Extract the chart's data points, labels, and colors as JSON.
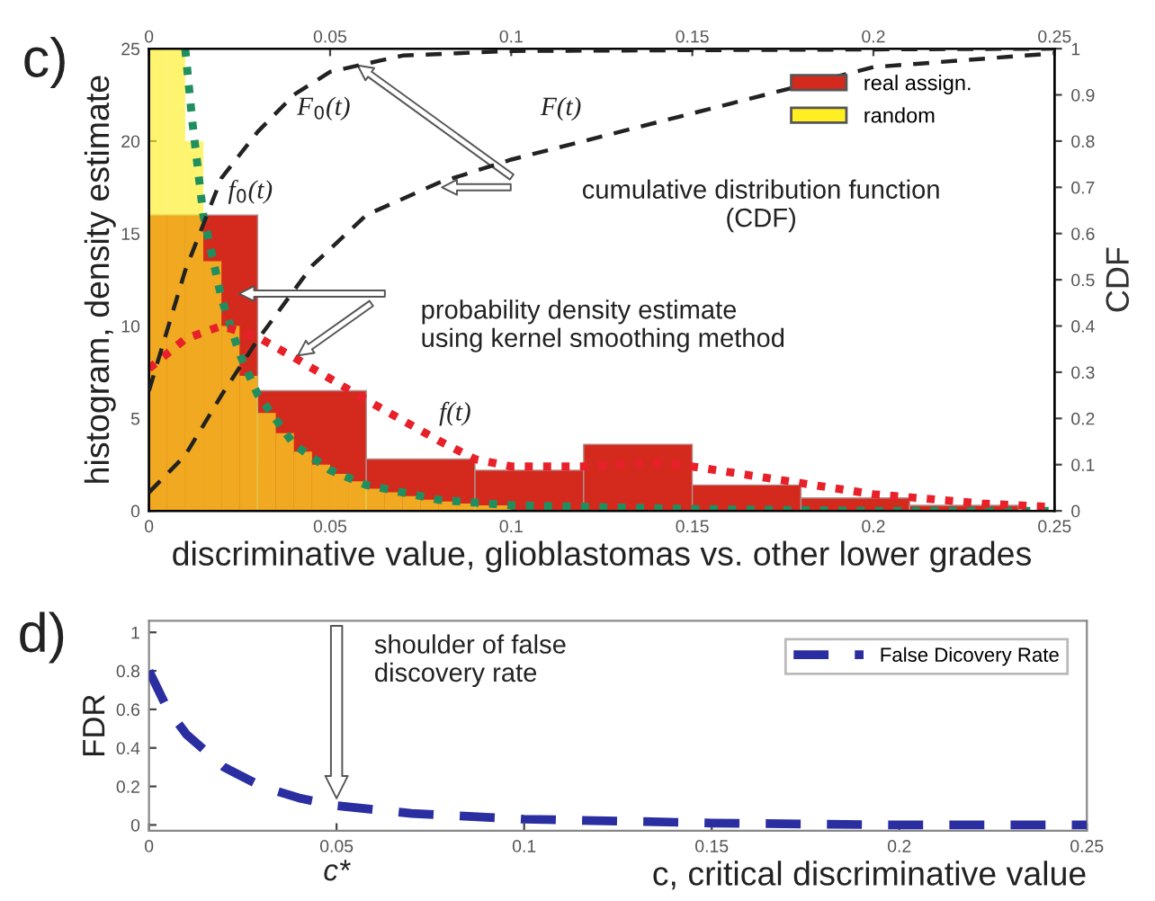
{
  "chart_data": [
    {
      "type": "histogram",
      "xlabel": "discriminative value, glioblastomas vs. other lower grades",
      "ylabel": "histogram, density estimate",
      "y2label": "CDF",
      "xlim": [
        0,
        0.25
      ],
      "xticks": [
        0,
        0.05,
        0.1,
        0.15,
        0.2,
        0.25
      ],
      "x2lim": [
        0,
        0.25
      ],
      "x2ticks": [
        0,
        0.05,
        0.1,
        0.15,
        0.2,
        0.25
      ],
      "ylim": [
        0,
        25
      ],
      "yticks": [
        0,
        5,
        10,
        15,
        20,
        25
      ],
      "y2lim": [
        0,
        1
      ],
      "y2ticks": [
        0,
        0.1,
        0.2,
        0.3,
        0.4,
        0.5,
        0.6,
        0.7,
        0.8,
        0.9,
        1
      ],
      "grid": false,
      "legend": "top right",
      "series": [
        {
          "name": "real assign.",
          "color": "#d42a1e",
          "bins": [
            0,
            0.03,
            0.06,
            0.09,
            0.12,
            0.15,
            0.18,
            0.21,
            0.24
          ],
          "values": [
            16,
            6.5,
            2.8,
            2.2,
            3.6,
            1.4,
            0.7,
            0.3
          ]
        },
        {
          "name": "random",
          "color": "#ffee22",
          "bins": [
            0,
            0.005,
            0.01,
            0.015,
            0.02,
            0.025,
            0.03,
            0.035,
            0.04,
            0.045,
            0.05,
            0.055,
            0.06,
            0.065,
            0.07,
            0.075,
            0.08,
            0.085,
            0.09,
            0.095,
            0.1
          ],
          "values": [
            25,
            25,
            20,
            13.5,
            10,
            7.3,
            5.3,
            4.2,
            3.2,
            2.5,
            2.0,
            1.6,
            1.2,
            1.0,
            0.8,
            0.6,
            0.5,
            0.4,
            0.3,
            0.3
          ]
        },
        {
          "type": "line",
          "color": "#1f8f5f",
          "line_style": "dotted",
          "x": [
            0.01,
            0.012,
            0.015,
            0.02,
            0.025,
            0.03,
            0.04,
            0.05,
            0.06,
            0.08,
            0.1,
            0.15,
            0.2,
            0.25
          ],
          "values": [
            25,
            21,
            16,
            11.5,
            8.5,
            6.3,
            3.6,
            2.2,
            1.4,
            0.6,
            0.3,
            0.1,
            0,
            0
          ]
        },
        {
          "type": "line",
          "color": "#e8202a",
          "line_style": "dotted",
          "x": [
            0,
            0.01,
            0.02,
            0.03,
            0.04,
            0.06,
            0.08,
            0.09,
            0.1,
            0.12,
            0.14,
            0.15,
            0.17,
            0.2,
            0.23,
            0.25
          ],
          "values": [
            7.7,
            9.3,
            10,
            9.4,
            8.3,
            6,
            3.8,
            2.8,
            2.4,
            2.4,
            2.6,
            2.4,
            1.8,
            0.9,
            0.4,
            0.2
          ]
        },
        {
          "type": "line",
          "axis": "y2",
          "color": "#222222",
          "line_style": "dashed",
          "x": [
            0,
            0.01,
            0.02,
            0.03,
            0.04,
            0.05,
            0.07,
            0.1,
            0.25
          ],
          "values": [
            0.26,
            0.52,
            0.72,
            0.82,
            0.9,
            0.95,
            0.985,
            0.995,
            1
          ]
        },
        {
          "type": "line",
          "axis": "y2",
          "color": "#222222",
          "line_style": "dashed",
          "x": [
            0,
            0.01,
            0.02,
            0.03,
            0.045,
            0.06,
            0.08,
            0.1,
            0.13,
            0.16,
            0.2,
            0.25
          ],
          "values": [
            0.04,
            0.12,
            0.25,
            0.37,
            0.53,
            0.64,
            0.71,
            0.76,
            0.82,
            0.88,
            0.96,
            0.99
          ]
        }
      ],
      "annotations": [
        "c)",
        "F$_{0}$(t)",
        "F(t)",
        "f$_{0}$(t)",
        "f(t)",
        "cumulative distribution function\n(CDF)",
        "probability density estimate\nusing kernel smoothing method"
      ]
    },
    {
      "type": "line",
      "xlabel": "c, critical discriminative value",
      "ylabel": "FDR",
      "xlim": [
        0,
        0.25
      ],
      "xticks": [
        0,
        0.05,
        0.1,
        0.15,
        0.2,
        0.25
      ],
      "ylim": [
        -0.03,
        1.06
      ],
      "yticks": [
        0,
        0.2,
        0.4,
        0.6,
        0.8,
        1
      ],
      "grid": false,
      "legend": "top right",
      "line_style": "dashed",
      "marker": "none",
      "series": [
        {
          "name": "False Dicovery Rate",
          "color": "#2a2ea0",
          "x": [
            0,
            0.005,
            0.01,
            0.02,
            0.03,
            0.04,
            0.05,
            0.07,
            0.1,
            0.15,
            0.2,
            0.25
          ],
          "values": [
            0.8,
            0.6,
            0.47,
            0.3,
            0.2,
            0.14,
            0.1,
            0.06,
            0.03,
            0.01,
            0,
            0
          ]
        }
      ],
      "annotations": [
        "d)",
        "shoulder of false\ndiscovery rate",
        "c*"
      ]
    }
  ]
}
